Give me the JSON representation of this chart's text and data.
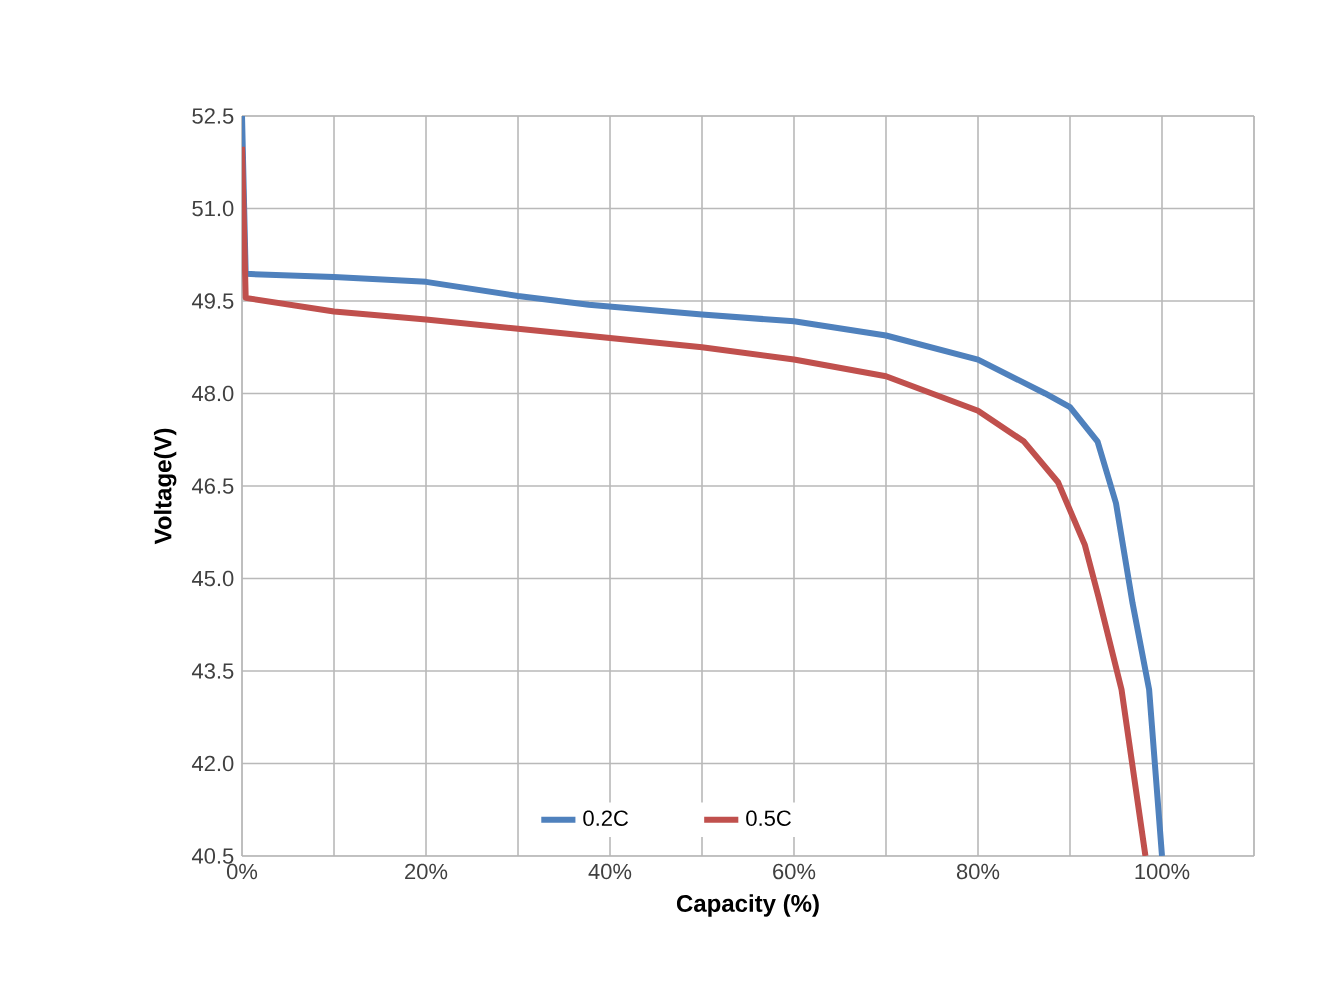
{
  "chart_data": {
    "type": "line",
    "xlabel": "Capacity (%)",
    "ylabel": "Voltage(V)",
    "xlim": [
      0,
      110
    ],
    "xticks": [
      {
        "value": 0,
        "label": "0%"
      },
      {
        "value": 10,
        "label": null
      },
      {
        "value": 20,
        "label": "20%"
      },
      {
        "value": 30,
        "label": null
      },
      {
        "value": 40,
        "label": "40%"
      },
      {
        "value": 50,
        "label": null
      },
      {
        "value": 60,
        "label": "60%"
      },
      {
        "value": 70,
        "label": null
      },
      {
        "value": 80,
        "label": "80%"
      },
      {
        "value": 90,
        "label": null
      },
      {
        "value": 100,
        "label": "100%"
      },
      {
        "value": 110,
        "label": null
      }
    ],
    "ylim": [
      40.5,
      52.5
    ],
    "yticks": [
      {
        "value": 40.5,
        "label": "40.5"
      },
      {
        "value": 42.0,
        "label": "42.0"
      },
      {
        "value": 43.5,
        "label": "43.5"
      },
      {
        "value": 45.0,
        "label": "45.0"
      },
      {
        "value": 46.5,
        "label": "46.5"
      },
      {
        "value": 48.0,
        "label": "48.0"
      },
      {
        "value": 49.5,
        "label": "49.5"
      },
      {
        "value": 51.0,
        "label": "51.0"
      },
      {
        "value": 52.5,
        "label": "52.5"
      }
    ],
    "grid": true,
    "legend": "bottom",
    "marker": "none",
    "line_style": "solid",
    "series": [
      {
        "name": "0.2C",
        "color": "#4f81bd",
        "x": [
          0,
          0.4,
          10,
          20,
          30,
          37.7,
          50,
          60,
          70,
          80,
          87.3,
          90,
          93,
          95,
          96.8,
          98.6,
          100
        ],
        "values": [
          52.5,
          49.94,
          49.89,
          49.81,
          49.58,
          49.44,
          49.28,
          49.17,
          48.94,
          48.55,
          48.0,
          47.78,
          47.22,
          46.22,
          44.6,
          43.2,
          40.5
        ]
      },
      {
        "name": "0.5C",
        "color": "#c0504d",
        "x": [
          0,
          0.4,
          10,
          20,
          30,
          40,
          50,
          60,
          70,
          80,
          85,
          88.7,
          91.6,
          93.1,
          95.6,
          98.2
        ],
        "values": [
          52.0,
          49.55,
          49.33,
          49.2,
          49.05,
          48.9,
          48.75,
          48.55,
          48.28,
          47.72,
          47.22,
          46.56,
          45.55,
          44.7,
          43.2,
          40.5
        ]
      }
    ]
  }
}
